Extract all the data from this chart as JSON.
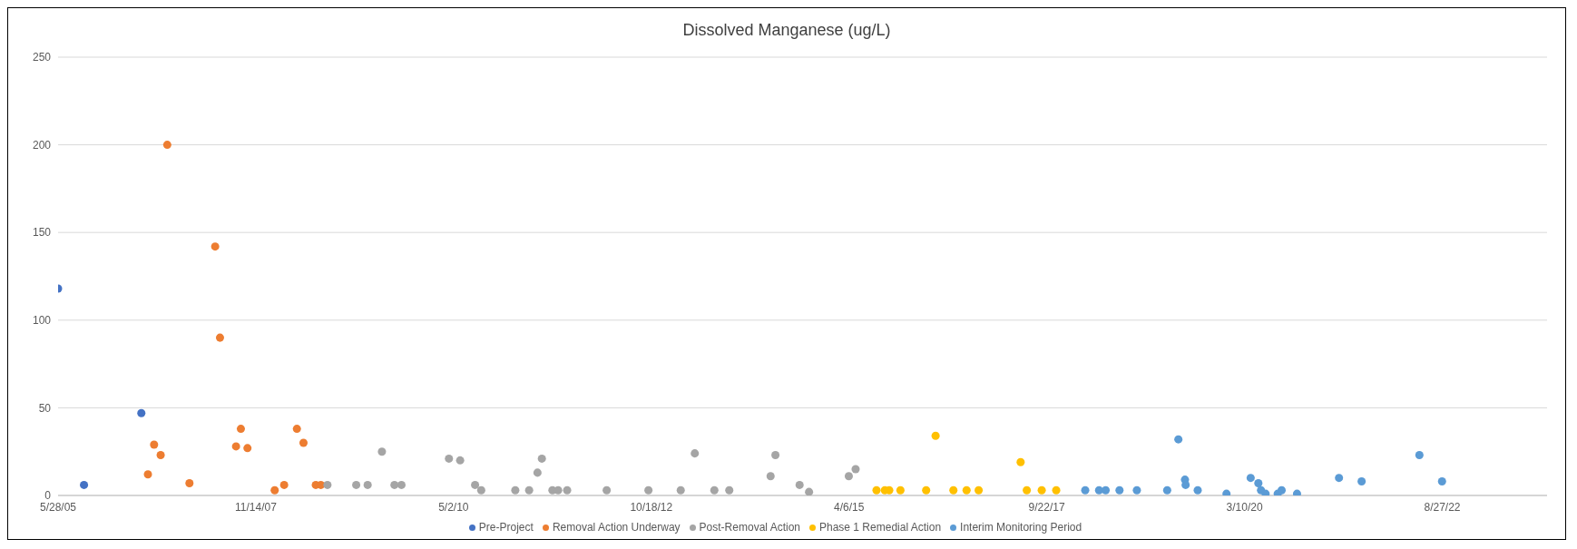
{
  "chart_data": {
    "type": "scatter",
    "title": "Dissolved Manganese (ug/L)",
    "marker": "circle",
    "grid": "y",
    "legend": "bottom",
    "xlim": [
      "2005-05-28",
      "2023-12-17"
    ],
    "xticks": [
      {
        "value": "2005-05-28",
        "label": "5/28/05"
      },
      {
        "value": "2007-11-14",
        "label": "11/14/07"
      },
      {
        "value": "2010-05-02",
        "label": "5/2/10"
      },
      {
        "value": "2012-10-18",
        "label": "10/18/12"
      },
      {
        "value": "2015-04-06",
        "label": "4/6/15"
      },
      {
        "value": "2017-09-22",
        "label": "9/22/17"
      },
      {
        "value": "2020-03-10",
        "label": "3/10/20"
      },
      {
        "value": "2022-08-27",
        "label": "8/27/22"
      }
    ],
    "ylim": [
      0,
      250
    ],
    "yticks": [
      0,
      50,
      100,
      150,
      200,
      250
    ],
    "series": [
      {
        "name": "Pre-Project",
        "color": "#4472c4",
        "x": [
          "2005-05-28",
          "2005-09-23",
          "2006-06-11"
        ],
        "values": [
          118,
          6,
          47
        ]
      },
      {
        "name": "Removal Action Underway",
        "color": "#ed7d31",
        "x": [
          "2006-07-11",
          "2006-08-08",
          "2006-09-07",
          "2006-10-07",
          "2007-01-16",
          "2007-05-13",
          "2007-06-04",
          "2007-08-16",
          "2007-09-07",
          "2007-10-07",
          "2008-02-08",
          "2008-03-22",
          "2008-05-19",
          "2008-06-18",
          "2008-08-13",
          "2008-09-05"
        ],
        "values": [
          12,
          29,
          23,
          200,
          7,
          142,
          90,
          28,
          38,
          27,
          3,
          6,
          38,
          30,
          6,
          6
        ]
      },
      {
        "name": "Post-Removal Action",
        "color": "#a5a5a5",
        "x": [
          "2008-10-05",
          "2009-02-13",
          "2009-04-06",
          "2009-06-10",
          "2009-08-06",
          "2009-09-07",
          "2010-04-11",
          "2010-06-01",
          "2010-08-08",
          "2010-09-05",
          "2011-02-07",
          "2011-04-11",
          "2011-05-19",
          "2011-06-08",
          "2011-07-26",
          "2011-08-21",
          "2011-10-01",
          "2012-03-29",
          "2012-10-05",
          "2013-03-01",
          "2013-05-04",
          "2013-08-01",
          "2013-10-08",
          "2014-04-14",
          "2014-05-06",
          "2014-08-24",
          "2014-10-06",
          "2015-04-05",
          "2015-05-06"
        ],
        "values": [
          6,
          6,
          6,
          25,
          6,
          6,
          21,
          20,
          6,
          3,
          3,
          3,
          13,
          21,
          3,
          3,
          3,
          3,
          3,
          3,
          24,
          3,
          3,
          11,
          23,
          6,
          2,
          11,
          15
        ]
      },
      {
        "name": "Phase 1 Remedial Action",
        "color": "#ffc000",
        "x": [
          "2015-08-09",
          "2015-09-16",
          "2015-10-06",
          "2015-11-26",
          "2016-03-22",
          "2016-05-04",
          "2016-07-24",
          "2016-09-22",
          "2016-11-16",
          "2017-05-26",
          "2017-06-23",
          "2017-08-30",
          "2017-11-04"
        ],
        "values": [
          3,
          3,
          3,
          3,
          3,
          34,
          3,
          3,
          3,
          19,
          3,
          3,
          3
        ]
      },
      {
        "name": "Interim Monitoring Period",
        "color": "#5b9bd5",
        "x": [
          "2018-03-16",
          "2018-05-18",
          "2018-06-17",
          "2018-08-19",
          "2018-11-06",
          "2019-03-24",
          "2019-05-14",
          "2019-06-13",
          "2019-06-16",
          "2019-08-10",
          "2019-12-19",
          "2020-04-07",
          "2020-05-12",
          "2020-05-24",
          "2020-06-14",
          "2020-08-08",
          "2020-08-26",
          "2020-11-04",
          "2021-05-14",
          "2021-08-25",
          "2022-05-15",
          "2022-08-26"
        ],
        "values": [
          3,
          3,
          3,
          3,
          3,
          3,
          32,
          9,
          6,
          3,
          1,
          10,
          7,
          3,
          1,
          1,
          3,
          1,
          10,
          8,
          23,
          8
        ]
      }
    ]
  }
}
